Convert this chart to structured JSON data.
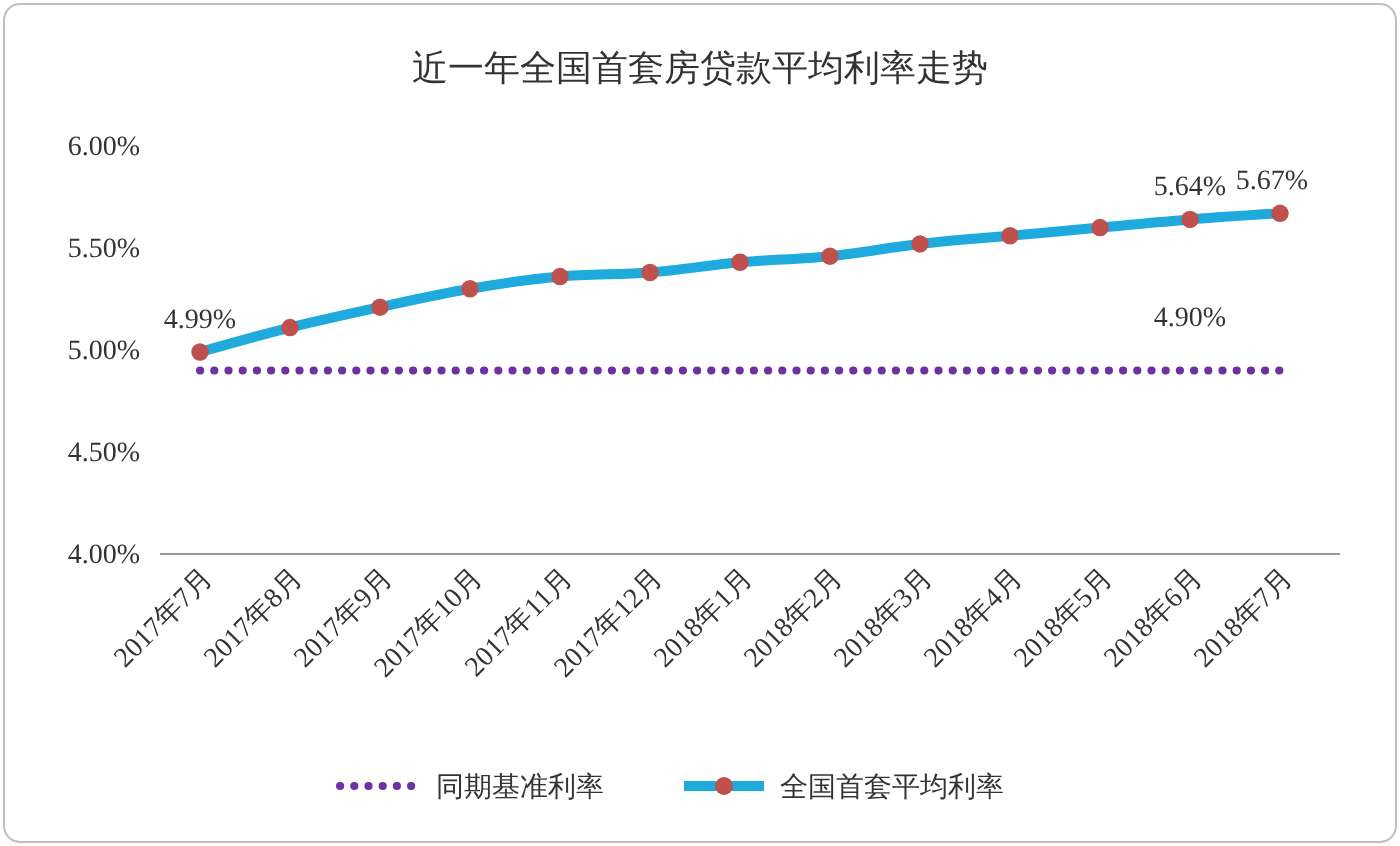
{
  "chart_data": {
    "type": "line",
    "title": "近一年全国首套房贷款平均利率走势",
    "categories": [
      "2017年7月",
      "2017年8月",
      "2017年9月",
      "2017年10月",
      "2017年11月",
      "2017年12月",
      "2018年1月",
      "2018年2月",
      "2018年3月",
      "2018年4月",
      "2018年5月",
      "2018年6月",
      "2018年7月"
    ],
    "series": [
      {
        "name": "同期基准利率",
        "color": "#7030a0",
        "line_style": "dotted",
        "marker": "none",
        "values": [
          4.9,
          4.9,
          4.9,
          4.9,
          4.9,
          4.9,
          4.9,
          4.9,
          4.9,
          4.9,
          4.9,
          4.9,
          4.9
        ],
        "value_labels": [
          null,
          null,
          null,
          null,
          null,
          null,
          null,
          null,
          null,
          null,
          null,
          "4.90%",
          null
        ]
      },
      {
        "name": "全国首套平均利率",
        "color": "#1eaadc",
        "line_style": "solid",
        "marker": "circle",
        "values": [
          4.99,
          5.11,
          5.21,
          5.3,
          5.36,
          5.38,
          5.43,
          5.46,
          5.52,
          5.56,
          5.6,
          5.64,
          5.67
        ],
        "value_labels": [
          "4.99%",
          null,
          null,
          null,
          null,
          null,
          null,
          null,
          null,
          null,
          null,
          "5.64%",
          "5.67%"
        ]
      }
    ],
    "ylim": [
      4,
      6
    ],
    "yticks": [
      {
        "value": 4,
        "label": "4.00%"
      },
      {
        "value": 4.5,
        "label": "4.50%"
      },
      {
        "value": 5,
        "label": "5.00%"
      },
      {
        "value": 5.5,
        "label": "5.50%"
      },
      {
        "value": 6,
        "label": "6.00%"
      }
    ],
    "grid": false,
    "legend": "bottom"
  }
}
